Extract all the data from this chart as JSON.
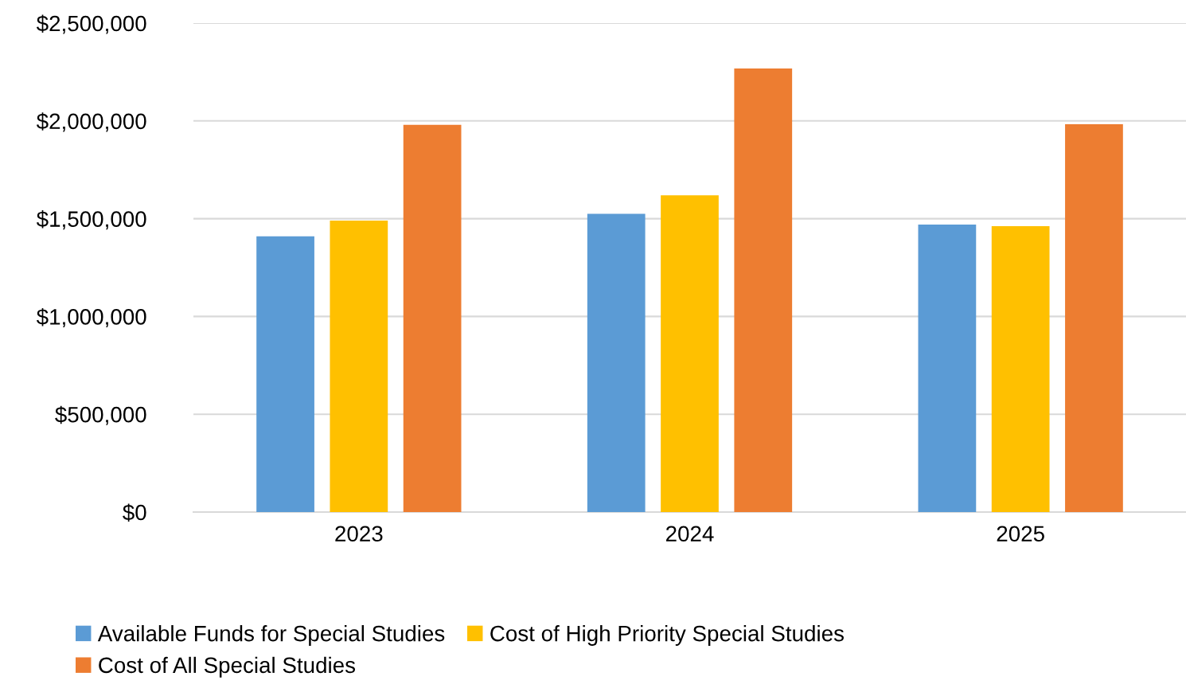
{
  "chart_data": {
    "type": "bar",
    "categories": [
      "2023",
      "2024",
      "2025"
    ],
    "series": [
      {
        "name": "Available Funds for Special Studies",
        "color": "#5b9bd5",
        "values": [
          1410000,
          1525000,
          1470000
        ]
      },
      {
        "name": "Cost of High Priority Special Studies",
        "color": "#ffc000",
        "values": [
          1490000,
          1620000,
          1462000
        ]
      },
      {
        "name": "Cost of All Special Studies",
        "color": "#ed7d31",
        "values": [
          1980000,
          2268000,
          1983000
        ]
      }
    ],
    "ylim": [
      0,
      2500000
    ],
    "yticks": [
      {
        "value": 0,
        "label": "$0"
      },
      {
        "value": 500000,
        "label": "$500,000"
      },
      {
        "value": 1000000,
        "label": "$1,000,000"
      },
      {
        "value": 1500000,
        "label": "$1,500,000"
      },
      {
        "value": 2000000,
        "label": "$2,000,000"
      },
      {
        "value": 2500000,
        "label": "$2,500,000"
      }
    ],
    "grid": "y",
    "legend": "bottom"
  }
}
